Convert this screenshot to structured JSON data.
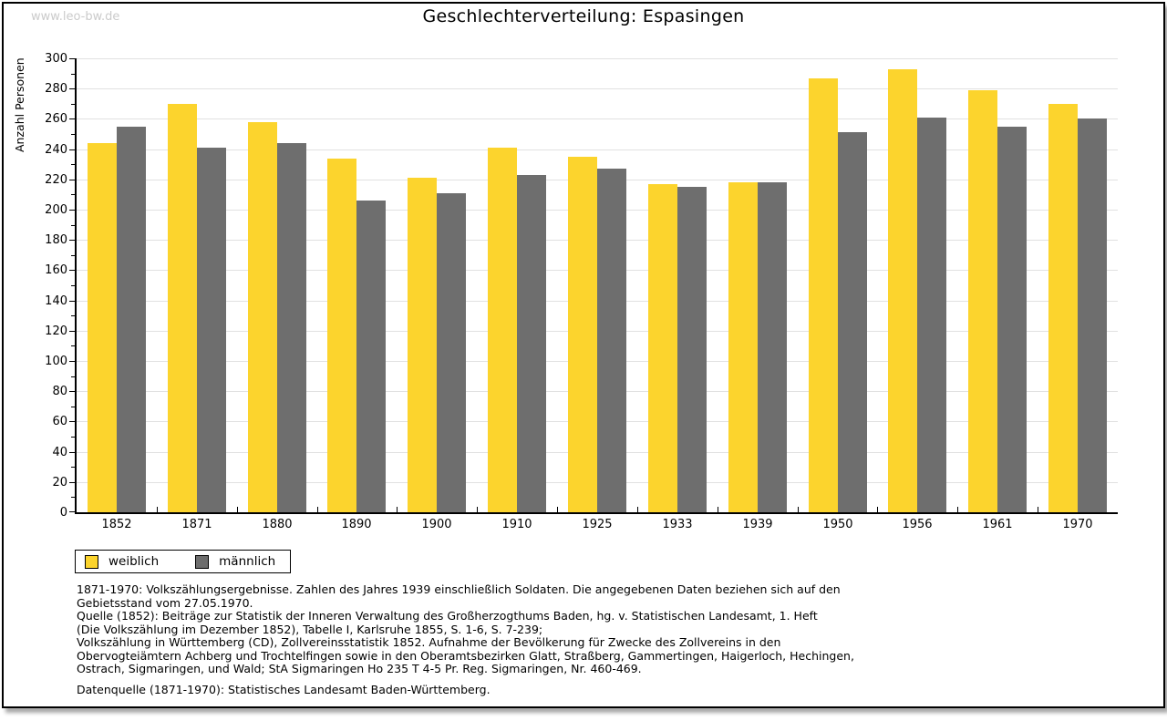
{
  "watermark": "www.leo-bw.de",
  "header": {
    "title": "Geschlechterverteilung: Espasingen"
  },
  "chart_data": {
    "type": "bar",
    "title": "Geschlechterverteilung: Espasingen",
    "xlabel": "",
    "ylabel": "Anzahl Personen",
    "ylim": [
      0,
      300
    ],
    "ytick_step": 20,
    "grid": true,
    "legend_position": "bottom-left",
    "categories": [
      "1852",
      "1871",
      "1880",
      "1890",
      "1900",
      "1910",
      "1925",
      "1933",
      "1939",
      "1950",
      "1956",
      "1961",
      "1970"
    ],
    "series": [
      {
        "name": "weiblich",
        "color": "#fcd42d",
        "values": [
          244,
          270,
          258,
          234,
          221,
          241,
          235,
          217,
          218,
          287,
          293,
          279,
          270
        ]
      },
      {
        "name": "männlich",
        "color": "#6e6e6e",
        "values": [
          255,
          241,
          244,
          206,
          211,
          223,
          227,
          215,
          218,
          251,
          261,
          255,
          260
        ]
      }
    ]
  },
  "footer": {
    "lines": [
      "1871-1970: Volkszählungsergebnisse. Zahlen des Jahres 1939 einschließlich Soldaten. Die angegebenen Daten beziehen sich auf den",
      "Gebietsstand vom 27.05.1970.",
      "Quelle (1852): Beiträge zur Statistik der Inneren Verwaltung des Großherzogthums Baden, hg. v. Statistischen Landesamt, 1. Heft",
      "(Die Volkszählung im Dezember 1852), Tabelle I, Karlsruhe 1855, S. 1-6, S. 7-239;",
      "Volkszählung in Württemberg (CD), Zollvereinsstatistik 1852. Aufnahme der Bevölkerung für Zwecke des Zollvereins in den",
      "Obervogteiämtern Achberg und Trochtelfingen sowie in den Oberamtsbezirken Glatt, Straßberg, Gammertingen, Haigerloch, Hechingen,",
      "Ostrach, Sigmaringen, und Wald; StA Sigmaringen Ho 235 T 4-5 Pr. Reg. Sigmaringen, Nr. 460-469."
    ],
    "datasource": "Datenquelle (1871-1970): Statistisches Landesamt Baden-Württemberg."
  },
  "colors": {
    "weiblich": "#fcd42d",
    "maennlich": "#6e6e6e",
    "gridline": "#e1e1e1",
    "watermark": "#cbcbcb"
  }
}
